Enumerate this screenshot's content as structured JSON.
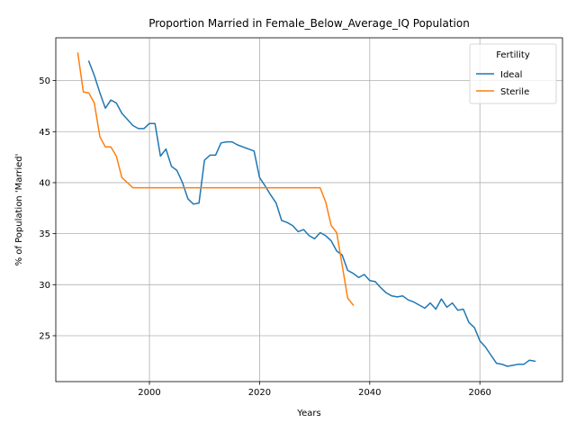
{
  "chart_data": {
    "type": "line",
    "title": "Proportion Married in Female_Below_Average_IQ Population",
    "xlabel": "Years",
    "ylabel": "% of Population 'Married'",
    "xlim": [
      1983,
      2075
    ],
    "ylim": [
      20.5,
      54.2
    ],
    "xticks": [
      2000,
      2020,
      2040,
      2060
    ],
    "yticks": [
      25,
      30,
      35,
      40,
      45,
      50
    ],
    "grid": true,
    "legend": {
      "title": "Fertility",
      "placement": "top-right"
    },
    "series": [
      {
        "name": "Ideal",
        "color": "#1f77b4",
        "x": [
          1989,
          1990,
          1991,
          1992,
          1993,
          1994,
          1995,
          1996,
          1997,
          1998,
          1999,
          2000,
          2001,
          2002,
          2003,
          2004,
          2005,
          2006,
          2007,
          2008,
          2009,
          2010,
          2011,
          2012,
          2013,
          2014,
          2015,
          2016,
          2017,
          2018,
          2019,
          2020,
          2021,
          2022,
          2023,
          2024,
          2025,
          2026,
          2027,
          2028,
          2029,
          2030,
          2031,
          2032,
          2033,
          2034,
          2035,
          2036,
          2037,
          2038,
          2039,
          2040,
          2041,
          2042,
          2043,
          2044,
          2045,
          2046,
          2047,
          2048,
          2049,
          2050,
          2051,
          2052,
          2053,
          2054,
          2055,
          2056,
          2057,
          2058,
          2059,
          2060,
          2061,
          2062,
          2063,
          2064,
          2065,
          2066,
          2067,
          2068,
          2069,
          2070
        ],
        "y": [
          51.9,
          50.5,
          48.8,
          47.3,
          48.1,
          47.8,
          46.8,
          46.2,
          45.6,
          45.3,
          45.3,
          45.8,
          45.8,
          42.6,
          43.3,
          41.6,
          41.2,
          40.0,
          38.4,
          37.9,
          38.0,
          42.2,
          42.7,
          42.7,
          43.9,
          44.0,
          44.0,
          43.7,
          43.5,
          43.3,
          43.1,
          40.5,
          39.7,
          38.8,
          38.0,
          36.3,
          36.1,
          35.8,
          35.2,
          35.4,
          34.8,
          34.5,
          35.1,
          34.8,
          34.3,
          33.3,
          32.9,
          31.4,
          31.1,
          30.7,
          31.0,
          30.4,
          30.3,
          29.7,
          29.2,
          28.9,
          28.8,
          28.9,
          28.5,
          28.3,
          28.0,
          27.7,
          28.2,
          27.6,
          28.6,
          27.8,
          28.2,
          27.5,
          27.6,
          26.3,
          25.8,
          24.5,
          23.9,
          23.1,
          22.3,
          22.2,
          22.0,
          22.1,
          22.2,
          22.2,
          22.6,
          22.5
        ]
      },
      {
        "name": "Sterile",
        "color": "#ff7f0e",
        "x": [
          1987,
          1988,
          1989,
          1990,
          1991,
          1992,
          1993,
          1994,
          1995,
          1996,
          1997,
          1998,
          1999,
          2000,
          2001,
          2002,
          2003,
          2004,
          2005,
          2006,
          2007,
          2008,
          2009,
          2010,
          2011,
          2012,
          2013,
          2014,
          2015,
          2016,
          2017,
          2018,
          2019,
          2020,
          2021,
          2022,
          2023,
          2024,
          2025,
          2026,
          2027,
          2028,
          2029,
          2030,
          2031,
          2032,
          2033,
          2034,
          2035,
          2036,
          2037
        ],
        "y": [
          52.7,
          48.9,
          48.8,
          47.8,
          44.5,
          43.5,
          43.5,
          42.6,
          40.5,
          40.0,
          39.5,
          39.5,
          39.5,
          39.5,
          39.5,
          39.5,
          39.5,
          39.5,
          39.5,
          39.5,
          39.5,
          39.5,
          39.5,
          39.5,
          39.5,
          39.5,
          39.5,
          39.5,
          39.5,
          39.5,
          39.5,
          39.5,
          39.5,
          39.5,
          39.5,
          39.5,
          39.5,
          39.5,
          39.5,
          39.5,
          39.5,
          39.5,
          39.5,
          39.5,
          39.5,
          38.1,
          35.8,
          35.1,
          31.9,
          28.7,
          28.0
        ]
      }
    ]
  }
}
